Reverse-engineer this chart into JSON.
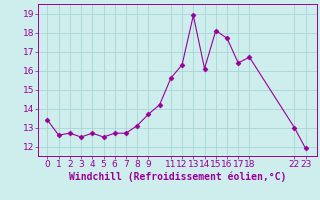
{
  "x": [
    0,
    1,
    2,
    3,
    4,
    5,
    6,
    7,
    8,
    9,
    10,
    11,
    12,
    13,
    14,
    15,
    16,
    17,
    18,
    22,
    23
  ],
  "y": [
    13.4,
    12.6,
    12.7,
    12.5,
    12.7,
    12.5,
    12.7,
    12.7,
    13.1,
    13.7,
    14.2,
    15.6,
    16.3,
    18.9,
    16.1,
    18.1,
    17.7,
    16.4,
    16.7,
    13.0,
    11.9
  ],
  "line_color": "#990099",
  "marker": "D",
  "marker_size": 2.5,
  "bg_color": "#ceeeed",
  "grid_color": "#aad4d4",
  "xlabel": "Windchill (Refroidissement éolien,°C)",
  "xlabel_fontsize": 7,
  "tick_fontsize": 6.5,
  "ylim": [
    11.5,
    19.5
  ],
  "yticks": [
    12,
    13,
    14,
    15,
    16,
    17,
    18,
    19
  ],
  "xlim": [
    -0.8,
    24.0
  ]
}
